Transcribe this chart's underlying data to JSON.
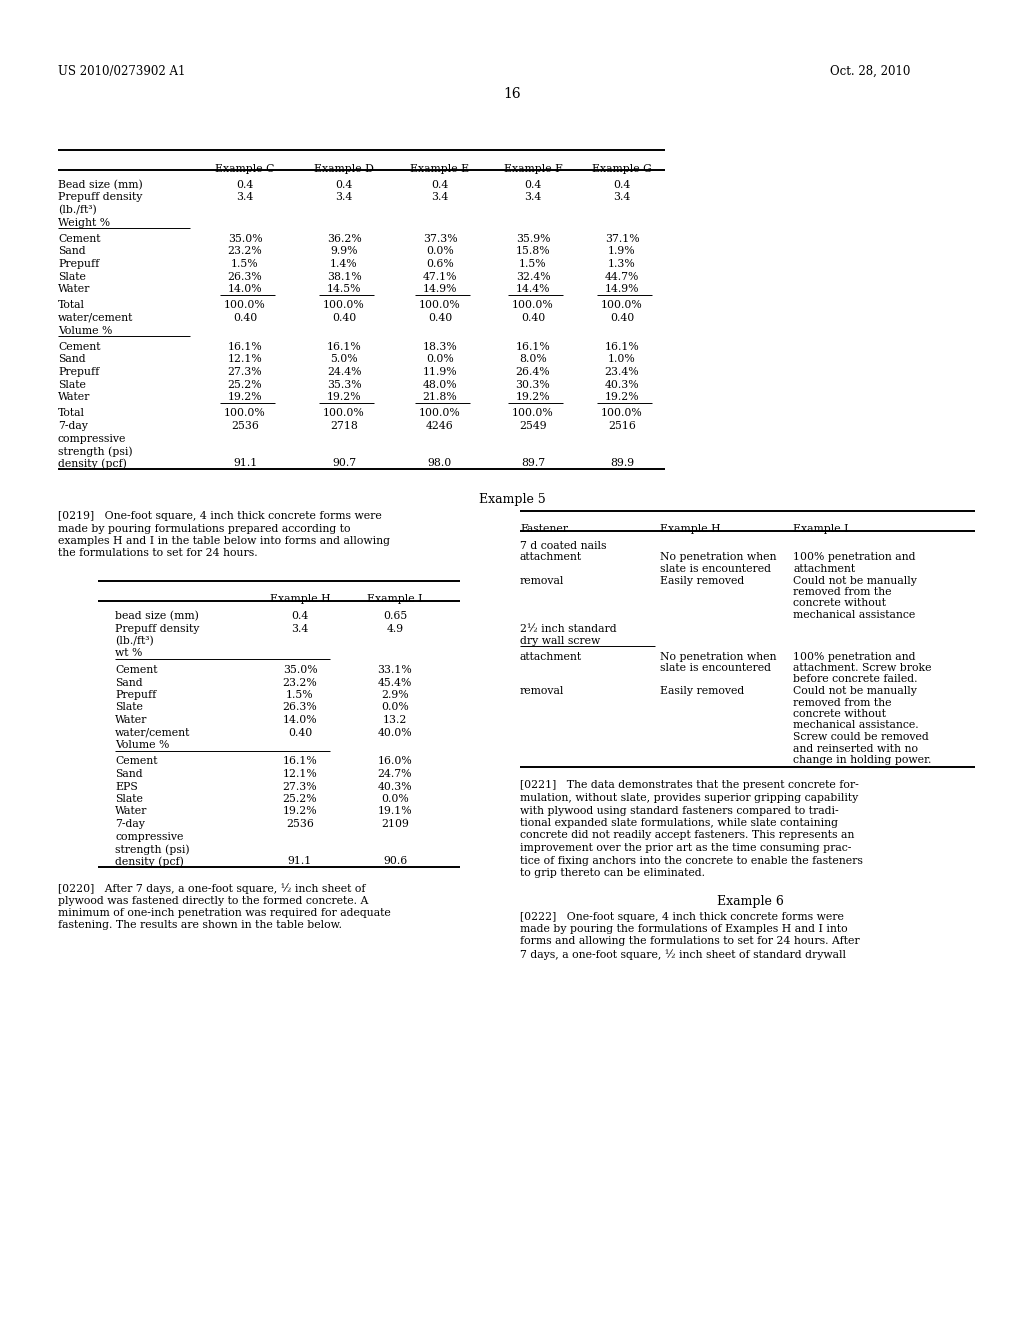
{
  "header_left": "US 2010/0273902 A1",
  "header_right": "Oct. 28, 2010",
  "page_number": "16",
  "bg_color": "#ffffff",
  "text_color": "#000000",
  "font_size": 7.5
}
